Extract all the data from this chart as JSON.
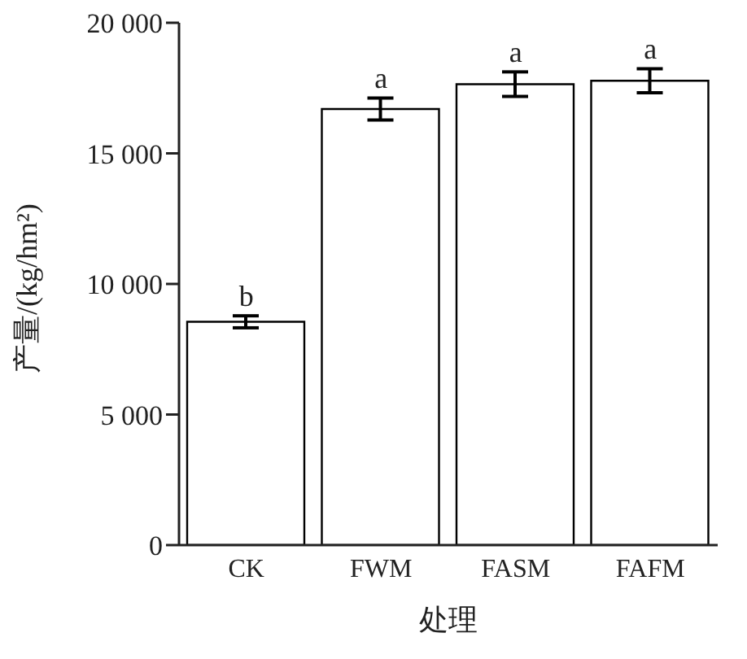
{
  "chart_data": {
    "type": "bar",
    "xlabel": "处理",
    "ylabel": "产量/(kg/hm²)",
    "categories": [
      "CK",
      "FWM",
      "FASM",
      "FAFM"
    ],
    "values": [
      8550,
      16700,
      17650,
      17780
    ],
    "errors": [
      230,
      420,
      470,
      460
    ],
    "colors": [
      "#ffffff",
      "#ffffff",
      "#ffffff",
      "#ffffff"
    ],
    "ylim": [
      0,
      20000
    ],
    "yticks": [
      0,
      {
        "value": 5000,
        "label": "5 000"
      },
      {
        "value": 10000,
        "label": "10 000"
      },
      {
        "value": 15000,
        "label": "15 000"
      },
      {
        "value": 20000,
        "label": "20 000"
      }
    ],
    "annotations": [
      "b",
      "a",
      "a",
      "a"
    ],
    "grid": false,
    "legend": false
  }
}
